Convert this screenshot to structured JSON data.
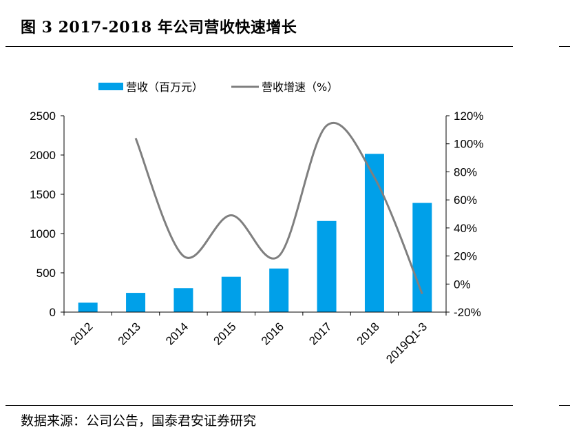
{
  "figure": {
    "title": "图 3   2017-2018 年公司营收快速增长",
    "source": "数据来源：公司公告，国泰君安证券研究"
  },
  "colors": {
    "bar": "#00A0E9",
    "line": "#7F7F7F",
    "axis": "#000000"
  },
  "chart_data": {
    "type": "bar+line",
    "categories": [
      "2012",
      "2013",
      "2014",
      "2015",
      "2016",
      "2017",
      "2018",
      "2019Q1-3"
    ],
    "series": [
      {
        "name": "营收（百万元）",
        "type": "bar",
        "axis": "left",
        "values": [
          120,
          245,
          305,
          450,
          555,
          1160,
          2015,
          1390
        ]
      },
      {
        "name": "营收增速（%）",
        "type": "line",
        "axis": "right",
        "values": [
          null,
          104,
          20,
          49,
          20,
          113,
          76,
          -7
        ]
      }
    ],
    "y_left": {
      "min": 0,
      "max": 2500,
      "ticks": [
        0,
        500,
        1000,
        1500,
        2000,
        2500
      ]
    },
    "y_right": {
      "min": -20,
      "max": 120,
      "ticks": [
        "-20%",
        "0%",
        "20%",
        "40%",
        "60%",
        "80%",
        "100%",
        "120%"
      ]
    },
    "legend_position": "top",
    "grid": false
  }
}
